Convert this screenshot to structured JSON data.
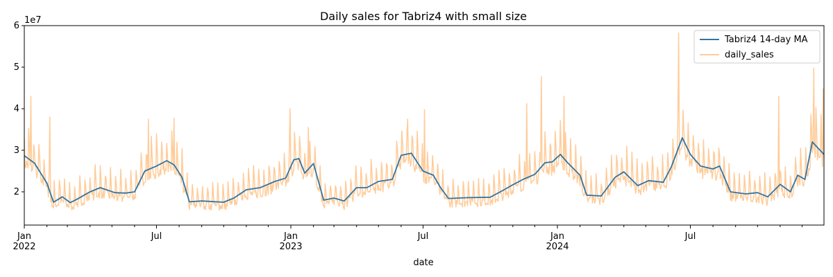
{
  "chart_data": {
    "type": "line",
    "title": "Daily sales for Tabriz4 with small size",
    "xlabel": "date",
    "ylabel": "",
    "y_scale_label": "1e7",
    "xlim": [
      "2022-01-01",
      "2024-12-31"
    ],
    "ylim": [
      12000000,
      60000000
    ],
    "y_ticks": [
      20000000,
      30000000,
      40000000,
      50000000,
      60000000
    ],
    "y_tick_labels": [
      "2",
      "3",
      "4",
      "5",
      "6"
    ],
    "x_major_ticks": [
      {
        "date": "2022-01-01",
        "label": "Jan",
        "sublabel": "2022"
      },
      {
        "date": "2022-07-01",
        "label": "Jul",
        "sublabel": ""
      },
      {
        "date": "2023-01-01",
        "label": "Jan",
        "sublabel": "2023"
      },
      {
        "date": "2023-07-01",
        "label": "Jul",
        "sublabel": ""
      },
      {
        "date": "2024-01-01",
        "label": "Jan",
        "sublabel": "2024"
      },
      {
        "date": "2024-07-01",
        "label": "Jul",
        "sublabel": ""
      }
    ],
    "grid": false,
    "legend_position": "top-right",
    "series": [
      {
        "name": "Tabriz4 14-day MA",
        "color": "#3274a1",
        "x": [
          "2022-01-01",
          "2022-01-15",
          "2022-02-01",
          "2022-02-10",
          "2022-02-22",
          "2022-03-05",
          "2022-03-15",
          "2022-04-01",
          "2022-04-15",
          "2022-05-05",
          "2022-05-20",
          "2022-06-01",
          "2022-06-15",
          "2022-07-01",
          "2022-07-15",
          "2022-07-25",
          "2022-08-05",
          "2022-08-15",
          "2022-09-01",
          "2022-10-01",
          "2022-10-15",
          "2022-11-01",
          "2022-11-20",
          "2022-12-10",
          "2022-12-25",
          "2023-01-05",
          "2023-01-12",
          "2023-01-20",
          "2023-02-01",
          "2023-02-15",
          "2023-03-01",
          "2023-03-15",
          "2023-04-01",
          "2023-04-15",
          "2023-05-01",
          "2023-05-20",
          "2023-06-01",
          "2023-06-15",
          "2023-07-01",
          "2023-07-15",
          "2023-07-25",
          "2023-08-05",
          "2023-09-01",
          "2023-10-01",
          "2023-10-20",
          "2023-11-01",
          "2023-11-15",
          "2023-12-01",
          "2023-12-15",
          "2023-12-25",
          "2024-01-05",
          "2024-01-15",
          "2024-02-01",
          "2024-02-10",
          "2024-03-01",
          "2024-03-20",
          "2024-04-01",
          "2024-04-20",
          "2024-05-05",
          "2024-05-25",
          "2024-06-05",
          "2024-06-20",
          "2024-07-01",
          "2024-07-15",
          "2024-08-01",
          "2024-08-10",
          "2024-08-25",
          "2024-09-15",
          "2024-10-01",
          "2024-10-15",
          "2024-11-01",
          "2024-11-15",
          "2024-11-25",
          "2024-12-05",
          "2024-12-15",
          "2024-12-31"
        ],
        "values": [
          28700000,
          26900000,
          22100000,
          17500000,
          18800000,
          17400000,
          18300000,
          20000000,
          21000000,
          19800000,
          19700000,
          20000000,
          25000000,
          26200000,
          27500000,
          26500000,
          23500000,
          17600000,
          17800000,
          17500000,
          18500000,
          20500000,
          21000000,
          22500000,
          23300000,
          27700000,
          28000000,
          24500000,
          26800000,
          18000000,
          18500000,
          17800000,
          21000000,
          21000000,
          22500000,
          23000000,
          28800000,
          29300000,
          25000000,
          24000000,
          21000000,
          18400000,
          18600000,
          18700000,
          20500000,
          21700000,
          23000000,
          24200000,
          27000000,
          27200000,
          29000000,
          27000000,
          24000000,
          19200000,
          19000000,
          23500000,
          24800000,
          21500000,
          22700000,
          22300000,
          26000000,
          33000000,
          29000000,
          26200000,
          25500000,
          26200000,
          20000000,
          19500000,
          19800000,
          18800000,
          21800000,
          20000000,
          24000000,
          23000000,
          32000000,
          29000000
        ],
        "values_note": ""
      },
      {
        "name": "daily_sales",
        "color": "#ffcc9a",
        "x": [],
        "values": []
      }
    ],
    "daily_sales_peaks": [
      {
        "date": "2022-01-10",
        "value": 43000000
      },
      {
        "date": "2022-02-05",
        "value": 38000000
      },
      {
        "date": "2022-06-20",
        "value": 37500000
      },
      {
        "date": "2022-07-25",
        "value": 37700000
      },
      {
        "date": "2022-12-31",
        "value": 40000000
      },
      {
        "date": "2023-01-25",
        "value": 35500000
      },
      {
        "date": "2023-06-10",
        "value": 37500000
      },
      {
        "date": "2023-07-03",
        "value": 39800000
      },
      {
        "date": "2023-11-20",
        "value": 41200000
      },
      {
        "date": "2023-12-10",
        "value": 47800000
      },
      {
        "date": "2024-01-10",
        "value": 43000000
      },
      {
        "date": "2024-06-15",
        "value": 58200000
      },
      {
        "date": "2024-10-30",
        "value": 43000000
      },
      {
        "date": "2024-12-17",
        "value": 49800000
      },
      {
        "date": "2024-12-30",
        "value": 44800000
      }
    ]
  }
}
